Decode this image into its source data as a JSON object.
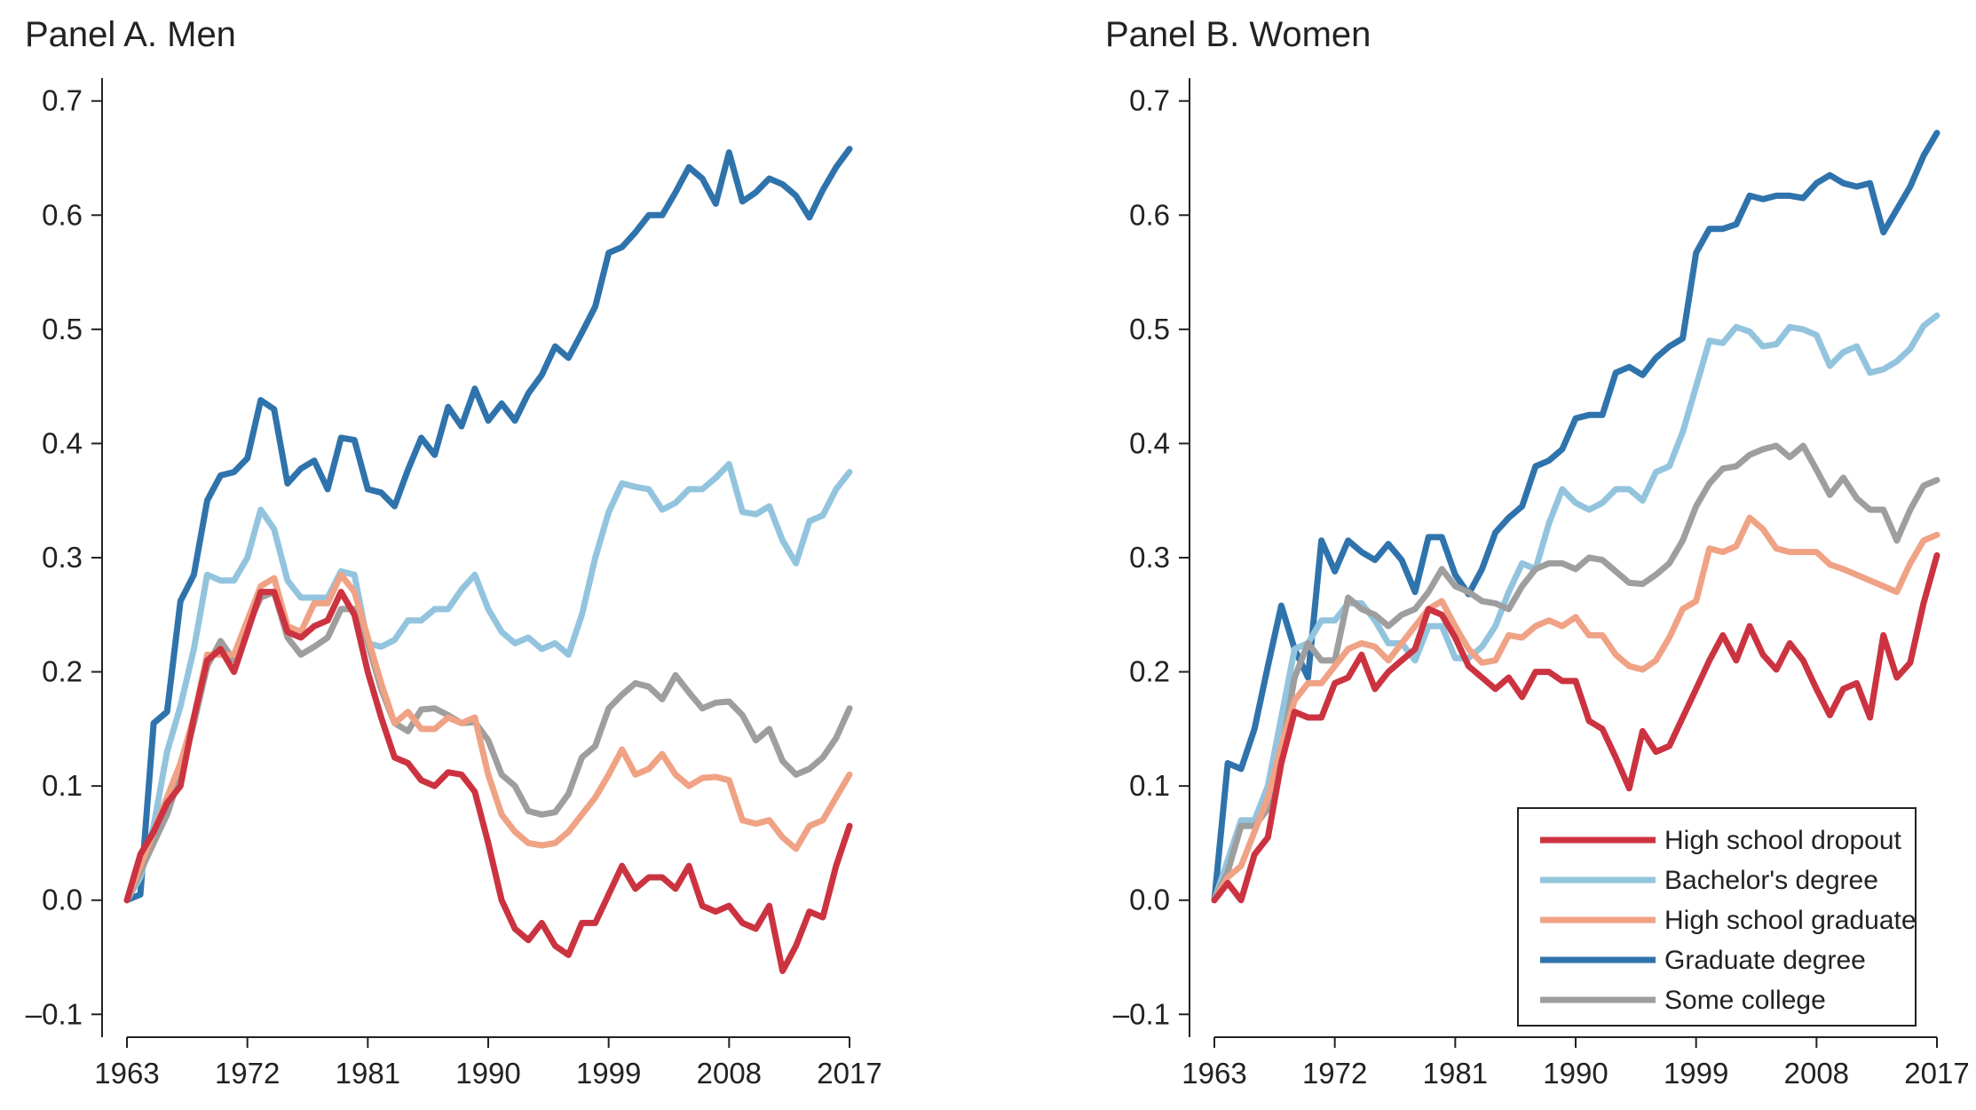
{
  "colors": {
    "High school dropout": "#cc3340",
    "Bachelor's degree": "#93c4de",
    "High school graduate": "#f0a285",
    "Graduate degree": "#2f73ac",
    "Some college": "#9e9e9e"
  },
  "chart_data": [
    {
      "type": "line",
      "title": "Panel A. Men",
      "xlabel": "",
      "ylabel": "",
      "xlim": [
        1963,
        2017
      ],
      "ylim": [
        -0.12,
        0.72
      ],
      "x_ticks": [
        "1963",
        "1972",
        "1981",
        "1990",
        "1999",
        "2008",
        "2017"
      ],
      "y_ticks": [
        "–0.1",
        "0.0",
        "0.1",
        "0.2",
        "0.3",
        "0.4",
        "0.5",
        "0.6",
        "0.7"
      ],
      "x": [
        1963,
        1964,
        1965,
        1966,
        1967,
        1968,
        1969,
        1970,
        1971,
        1972,
        1973,
        1974,
        1975,
        1976,
        1977,
        1978,
        1979,
        1980,
        1981,
        1982,
        1983,
        1984,
        1985,
        1986,
        1987,
        1988,
        1989,
        1990,
        1991,
        1992,
        1993,
        1994,
        1995,
        1996,
        1997,
        1998,
        1999,
        2000,
        2001,
        2002,
        2003,
        2004,
        2005,
        2006,
        2007,
        2008,
        2009,
        2010,
        2011,
        2012,
        2013,
        2014,
        2015,
        2016,
        2017
      ],
      "series": [
        {
          "name": "High school dropout",
          "values": [
            0.0,
            0.04,
            0.06,
            0.085,
            0.1,
            0.16,
            0.21,
            0.22,
            0.2,
            0.235,
            0.27,
            0.27,
            0.235,
            0.23,
            0.24,
            0.245,
            0.27,
            0.25,
            0.2,
            0.16,
            0.125,
            0.12,
            0.105,
            0.1,
            0.112,
            0.11,
            0.095,
            0.05,
            0.0,
            -0.025,
            -0.035,
            -0.02,
            -0.04,
            -0.048,
            -0.02,
            -0.02,
            0.005,
            0.03,
            0.01,
            0.02,
            0.02,
            0.01,
            0.03,
            -0.005,
            -0.01,
            -0.005,
            -0.02,
            -0.025,
            -0.005,
            -0.062,
            -0.04,
            -0.01,
            -0.015,
            0.03,
            0.065
          ]
        },
        {
          "name": "Bachelor's degree",
          "values": [
            0.0,
            0.02,
            0.065,
            0.13,
            0.17,
            0.22,
            0.285,
            0.28,
            0.28,
            0.3,
            0.342,
            0.325,
            0.28,
            0.265,
            0.265,
            0.265,
            0.288,
            0.285,
            0.225,
            0.222,
            0.228,
            0.245,
            0.245,
            0.255,
            0.255,
            0.272,
            0.285,
            0.255,
            0.235,
            0.225,
            0.23,
            0.22,
            0.225,
            0.215,
            0.25,
            0.3,
            0.34,
            0.365,
            0.362,
            0.36,
            0.342,
            0.348,
            0.36,
            0.36,
            0.37,
            0.382,
            0.34,
            0.338,
            0.345,
            0.315,
            0.295,
            0.332,
            0.337,
            0.36,
            0.375
          ]
        },
        {
          "name": "High school graduate",
          "values": [
            0.0,
            0.03,
            0.06,
            0.09,
            0.12,
            0.16,
            0.215,
            0.215,
            0.215,
            0.245,
            0.275,
            0.282,
            0.24,
            0.235,
            0.26,
            0.26,
            0.285,
            0.27,
            0.23,
            0.19,
            0.155,
            0.165,
            0.15,
            0.15,
            0.16,
            0.155,
            0.16,
            0.11,
            0.075,
            0.06,
            0.05,
            0.048,
            0.05,
            0.06,
            0.075,
            0.09,
            0.11,
            0.132,
            0.11,
            0.115,
            0.128,
            0.11,
            0.1,
            0.107,
            0.108,
            0.105,
            0.07,
            0.067,
            0.07,
            0.055,
            0.045,
            0.065,
            0.07,
            0.09,
            0.11
          ]
        },
        {
          "name": "Graduate degree",
          "values": [
            0.0,
            0.005,
            0.155,
            0.165,
            0.262,
            0.285,
            0.35,
            0.372,
            0.375,
            0.387,
            0.438,
            0.43,
            0.365,
            0.378,
            0.385,
            0.36,
            0.405,
            0.403,
            0.36,
            0.357,
            0.345,
            0.377,
            0.405,
            0.39,
            0.432,
            0.415,
            0.448,
            0.42,
            0.435,
            0.42,
            0.444,
            0.46,
            0.485,
            0.475,
            0.497,
            0.52,
            0.567,
            0.572,
            0.585,
            0.6,
            0.6,
            0.62,
            0.642,
            0.632,
            0.61,
            0.655,
            0.612,
            0.62,
            0.632,
            0.627,
            0.617,
            0.598,
            0.622,
            0.642,
            0.658
          ]
        },
        {
          "name": "Some college",
          "values": [
            0.0,
            0.025,
            0.05,
            0.075,
            0.11,
            0.155,
            0.205,
            0.227,
            0.21,
            0.24,
            0.265,
            0.27,
            0.23,
            0.215,
            0.222,
            0.23,
            0.255,
            0.255,
            0.225,
            0.185,
            0.155,
            0.148,
            0.167,
            0.168,
            0.162,
            0.155,
            0.156,
            0.14,
            0.11,
            0.1,
            0.078,
            0.075,
            0.077,
            0.093,
            0.125,
            0.135,
            0.168,
            0.18,
            0.19,
            0.187,
            0.176,
            0.197,
            0.182,
            0.168,
            0.173,
            0.174,
            0.162,
            0.14,
            0.15,
            0.122,
            0.11,
            0.115,
            0.125,
            0.142,
            0.168
          ]
        }
      ]
    },
    {
      "type": "line",
      "title": "Panel B. Women",
      "xlabel": "",
      "ylabel": "",
      "xlim": [
        1963,
        2017
      ],
      "ylim": [
        -0.12,
        0.72
      ],
      "x_ticks": [
        "1963",
        "1972",
        "1981",
        "1990",
        "1999",
        "2008",
        "2017"
      ],
      "y_ticks": [
        "–0.1",
        "0.0",
        "0.1",
        "0.2",
        "0.3",
        "0.4",
        "0.5",
        "0.6",
        "0.7"
      ],
      "legend_position": "bottom-right",
      "x": [
        1963,
        1964,
        1965,
        1966,
        1967,
        1968,
        1969,
        1970,
        1971,
        1972,
        1973,
        1974,
        1975,
        1976,
        1977,
        1978,
        1979,
        1980,
        1981,
        1982,
        1983,
        1984,
        1985,
        1986,
        1987,
        1988,
        1989,
        1990,
        1991,
        1992,
        1993,
        1994,
        1995,
        1996,
        1997,
        1998,
        1999,
        2000,
        2001,
        2002,
        2003,
        2004,
        2005,
        2006,
        2007,
        2008,
        2009,
        2010,
        2011,
        2012,
        2013,
        2014,
        2015,
        2016,
        2017
      ],
      "series": [
        {
          "name": "High school dropout",
          "values": [
            0.0,
            0.015,
            0.0,
            0.04,
            0.055,
            0.12,
            0.165,
            0.16,
            0.16,
            0.19,
            0.195,
            0.215,
            0.185,
            0.2,
            0.21,
            0.22,
            0.255,
            0.25,
            0.23,
            0.205,
            0.195,
            0.185,
            0.195,
            0.178,
            0.2,
            0.2,
            0.192,
            0.192,
            0.157,
            0.15,
            0.125,
            0.098,
            0.148,
            0.13,
            0.135,
            0.16,
            0.185,
            0.21,
            0.232,
            0.21,
            0.24,
            0.215,
            0.202,
            0.225,
            0.21,
            0.185,
            0.162,
            0.185,
            0.19,
            0.16,
            0.232,
            0.195,
            0.208,
            0.26,
            0.302
          ]
        },
        {
          "name": "Bachelor's degree",
          "values": [
            0.0,
            0.035,
            0.07,
            0.07,
            0.1,
            0.16,
            0.22,
            0.225,
            0.245,
            0.245,
            0.26,
            0.26,
            0.245,
            0.225,
            0.225,
            0.21,
            0.24,
            0.24,
            0.212,
            0.212,
            0.222,
            0.24,
            0.27,
            0.295,
            0.29,
            0.33,
            0.36,
            0.348,
            0.342,
            0.348,
            0.36,
            0.36,
            0.35,
            0.375,
            0.38,
            0.41,
            0.45,
            0.49,
            0.488,
            0.502,
            0.498,
            0.485,
            0.487,
            0.502,
            0.5,
            0.495,
            0.468,
            0.48,
            0.485,
            0.462,
            0.465,
            0.472,
            0.483,
            0.503,
            0.512
          ]
        },
        {
          "name": "High school graduate",
          "values": [
            0.0,
            0.02,
            0.03,
            0.06,
            0.09,
            0.135,
            0.175,
            0.19,
            0.19,
            0.205,
            0.22,
            0.225,
            0.222,
            0.21,
            0.225,
            0.24,
            0.255,
            0.262,
            0.24,
            0.22,
            0.208,
            0.21,
            0.232,
            0.23,
            0.24,
            0.245,
            0.24,
            0.248,
            0.232,
            0.232,
            0.215,
            0.205,
            0.202,
            0.21,
            0.23,
            0.255,
            0.262,
            0.308,
            0.305,
            0.31,
            0.335,
            0.325,
            0.308,
            0.305,
            0.305,
            0.305,
            0.294,
            0.29,
            0.285,
            0.28,
            0.275,
            0.27,
            0.295,
            0.315,
            0.32
          ]
        },
        {
          "name": "Graduate degree",
          "values": [
            0.0,
            0.12,
            0.115,
            0.15,
            0.205,
            0.258,
            0.22,
            0.195,
            0.315,
            0.288,
            0.315,
            0.305,
            0.298,
            0.312,
            0.298,
            0.27,
            0.318,
            0.318,
            0.285,
            0.268,
            0.29,
            0.322,
            0.335,
            0.345,
            0.38,
            0.385,
            0.395,
            0.422,
            0.425,
            0.425,
            0.462,
            0.467,
            0.46,
            0.475,
            0.485,
            0.492,
            0.567,
            0.588,
            0.588,
            0.592,
            0.617,
            0.614,
            0.617,
            0.617,
            0.615,
            0.628,
            0.635,
            0.628,
            0.625,
            0.628,
            0.585,
            0.605,
            0.625,
            0.652,
            0.672
          ]
        },
        {
          "name": "Some college",
          "values": [
            0.0,
            0.025,
            0.065,
            0.065,
            0.08,
            0.13,
            0.195,
            0.225,
            0.21,
            0.21,
            0.265,
            0.255,
            0.25,
            0.24,
            0.25,
            0.255,
            0.27,
            0.29,
            0.275,
            0.27,
            0.262,
            0.26,
            0.255,
            0.275,
            0.29,
            0.295,
            0.295,
            0.29,
            0.3,
            0.298,
            0.288,
            0.278,
            0.277,
            0.285,
            0.295,
            0.315,
            0.345,
            0.365,
            0.378,
            0.38,
            0.39,
            0.395,
            0.398,
            0.388,
            0.398,
            0.377,
            0.355,
            0.37,
            0.352,
            0.342,
            0.342,
            0.315,
            0.342,
            0.363,
            0.368
          ]
        }
      ]
    }
  ]
}
